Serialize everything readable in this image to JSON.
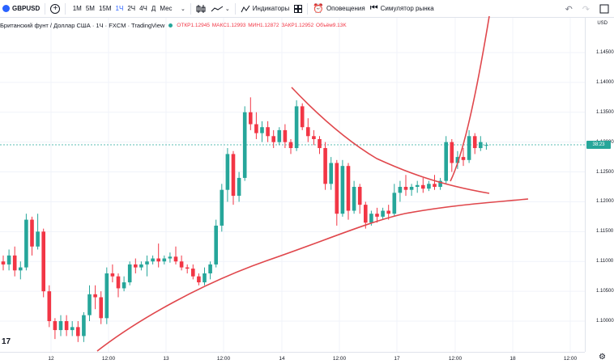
{
  "toolbar": {
    "symbol": "GBPUSD",
    "add_symbol": "+",
    "timeframes": [
      {
        "label": "1М",
        "active": false
      },
      {
        "label": "5М",
        "active": false
      },
      {
        "label": "15М",
        "active": false
      },
      {
        "label": "1Ч",
        "active": true
      },
      {
        "label": "2Ч",
        "active": false
      },
      {
        "label": "4Ч",
        "active": false
      },
      {
        "label": "Д",
        "active": false
      },
      {
        "label": "Мес",
        "active": false
      }
    ],
    "indicators_label": "Индикаторы",
    "alerts_label": "Оповещения",
    "replay_label": "Симулятор рынка",
    "undo_icon": "↶",
    "redo_icon": "↷"
  },
  "legend": {
    "title": "Британский фунт / Доллар США · 1Ч · FXCM · TradingView",
    "open": "ОТКР1.12945",
    "high": "МАКС1.12993",
    "low": "МИН1.12872",
    "close": "ЗАКР1.12952",
    "volume": "Объём9.13K"
  },
  "currency": "USD",
  "price_scale": {
    "labels": [
      "1.14500",
      "1.14000",
      "1.13500",
      "1.13000",
      "1.12500",
      "1.12000",
      "1.11500",
      "1.11000",
      "1.10500",
      "1.10000"
    ],
    "current_tag": "38:23"
  },
  "time_axis": {
    "labels": [
      "12",
      "12:00",
      "13",
      "12:00",
      "14",
      "12:00",
      "17",
      "12:00",
      "18",
      "12:00"
    ]
  },
  "colors": {
    "up": "#26a69a",
    "down": "#f23645",
    "drawing": "#e0474c",
    "accent": "#2962ff"
  },
  "chart_data": {
    "type": "candlestick",
    "symbol": "GBPUSD",
    "interval": "1Ч",
    "ylim": [
      1.0965,
      1.148
    ],
    "ohlc": [
      [
        1.11,
        1.111,
        1.1085,
        1.1095
      ],
      [
        1.1095,
        1.112,
        1.1085,
        1.111
      ],
      [
        1.111,
        1.1125,
        1.1075,
        1.1085
      ],
      [
        1.1085,
        1.11,
        1.107,
        1.109
      ],
      [
        1.109,
        1.118,
        1.1085,
        1.117
      ],
      [
        1.117,
        1.1175,
        1.111,
        1.1125
      ],
      [
        1.1125,
        1.118,
        1.112,
        1.115
      ],
      [
        1.115,
        1.1155,
        1.104,
        1.105
      ],
      [
        1.105,
        1.106,
        1.099,
        1.1
      ],
      [
        1.1,
        1.1005,
        1.097,
        1.0985
      ],
      [
        1.0985,
        1.101,
        1.0975,
        1.1
      ],
      [
        1.1,
        1.101,
        1.0975,
        1.0985
      ],
      [
        1.0985,
        1.1,
        1.0975,
        1.099
      ],
      [
        1.099,
        1.1,
        1.0965,
        1.0975
      ],
      [
        1.0975,
        1.1015,
        1.0965,
        1.101
      ],
      [
        1.101,
        1.106,
        1.1,
        1.1045
      ],
      [
        1.1045,
        1.106,
        1.102,
        1.104
      ],
      [
        1.104,
        1.105,
        1.0995,
        1.1005
      ],
      [
        1.1005,
        1.109,
        1.0995,
        1.108
      ],
      [
        1.108,
        1.1095,
        1.1065,
        1.1075
      ],
      [
        1.1075,
        1.108,
        1.104,
        1.1055
      ],
      [
        1.1055,
        1.1075,
        1.105,
        1.1065
      ],
      [
        1.1065,
        1.11,
        1.106,
        1.1095
      ],
      [
        1.1095,
        1.1105,
        1.108,
        1.109
      ],
      [
        1.109,
        1.11,
        1.1085,
        1.1095
      ],
      [
        1.1095,
        1.111,
        1.1075,
        1.11
      ],
      [
        1.11,
        1.111,
        1.1095,
        1.1105
      ],
      [
        1.1105,
        1.113,
        1.109,
        1.11
      ],
      [
        1.11,
        1.111,
        1.1095,
        1.1105
      ],
      [
        1.1105,
        1.1115,
        1.1098,
        1.1108
      ],
      [
        1.1108,
        1.1125,
        1.1095,
        1.11
      ],
      [
        1.11,
        1.111,
        1.1085,
        1.109
      ],
      [
        1.109,
        1.1095,
        1.108,
        1.1088
      ],
      [
        1.1088,
        1.1095,
        1.107,
        1.1075
      ],
      [
        1.1075,
        1.108,
        1.106,
        1.1065
      ],
      [
        1.1065,
        1.109,
        1.106,
        1.108
      ],
      [
        1.108,
        1.11,
        1.107,
        1.1095
      ],
      [
        1.1095,
        1.117,
        1.109,
        1.116
      ],
      [
        1.116,
        1.123,
        1.115,
        1.122
      ],
      [
        1.122,
        1.129,
        1.12,
        1.128
      ],
      [
        1.128,
        1.1285,
        1.1195,
        1.121
      ],
      [
        1.121,
        1.125,
        1.12,
        1.124
      ],
      [
        1.124,
        1.136,
        1.1235,
        1.135
      ],
      [
        1.135,
        1.1375,
        1.132,
        1.133
      ],
      [
        1.133,
        1.135,
        1.1305,
        1.1315
      ],
      [
        1.1315,
        1.1335,
        1.13,
        1.1325
      ],
      [
        1.1325,
        1.1335,
        1.13,
        1.131
      ],
      [
        1.131,
        1.132,
        1.129,
        1.13
      ],
      [
        1.13,
        1.1325,
        1.1295,
        1.132
      ],
      [
        1.132,
        1.133,
        1.129,
        1.13
      ],
      [
        1.13,
        1.1305,
        1.128,
        1.129
      ],
      [
        1.129,
        1.137,
        1.1285,
        1.136
      ],
      [
        1.136,
        1.1365,
        1.132,
        1.1325
      ],
      [
        1.1325,
        1.134,
        1.13,
        1.131
      ],
      [
        1.131,
        1.132,
        1.1295,
        1.1305
      ],
      [
        1.1305,
        1.131,
        1.128,
        1.129
      ],
      [
        1.129,
        1.13,
        1.122,
        1.123
      ],
      [
        1.123,
        1.1275,
        1.122,
        1.1265
      ],
      [
        1.1265,
        1.127,
        1.116,
        1.118
      ],
      [
        1.118,
        1.127,
        1.1175,
        1.126
      ],
      [
        1.126,
        1.1265,
        1.117,
        1.1185
      ],
      [
        1.1185,
        1.1235,
        1.118,
        1.1225
      ],
      [
        1.1225,
        1.123,
        1.118,
        1.1195
      ],
      [
        1.1195,
        1.12,
        1.1155,
        1.1165
      ],
      [
        1.1165,
        1.1185,
        1.116,
        1.118
      ],
      [
        1.118,
        1.119,
        1.1165,
        1.1175
      ],
      [
        1.1175,
        1.119,
        1.117,
        1.1185
      ],
      [
        1.1185,
        1.1195,
        1.117,
        1.118
      ],
      [
        1.118,
        1.123,
        1.1175,
        1.1215
      ],
      [
        1.1215,
        1.1235,
        1.12,
        1.1225
      ],
      [
        1.1225,
        1.1245,
        1.121,
        1.122
      ],
      [
        1.122,
        1.123,
        1.121,
        1.1225
      ],
      [
        1.1225,
        1.1235,
        1.1215,
        1.1228
      ],
      [
        1.1228,
        1.124,
        1.1215,
        1.1222
      ],
      [
        1.1222,
        1.1235,
        1.1218,
        1.123
      ],
      [
        1.123,
        1.1245,
        1.122,
        1.1225
      ],
      [
        1.1225,
        1.124,
        1.122,
        1.1235
      ],
      [
        1.1235,
        1.131,
        1.123,
        1.13
      ],
      [
        1.13,
        1.1305,
        1.125,
        1.1265
      ],
      [
        1.1265,
        1.1285,
        1.1255,
        1.1275
      ],
      [
        1.1275,
        1.129,
        1.126,
        1.127
      ],
      [
        1.127,
        1.132,
        1.1265,
        1.131
      ],
      [
        1.131,
        1.1315,
        1.128,
        1.129
      ],
      [
        1.129,
        1.131,
        1.1285,
        1.13
      ],
      [
        1.12945,
        1.12993,
        1.12872,
        1.12952
      ]
    ]
  }
}
